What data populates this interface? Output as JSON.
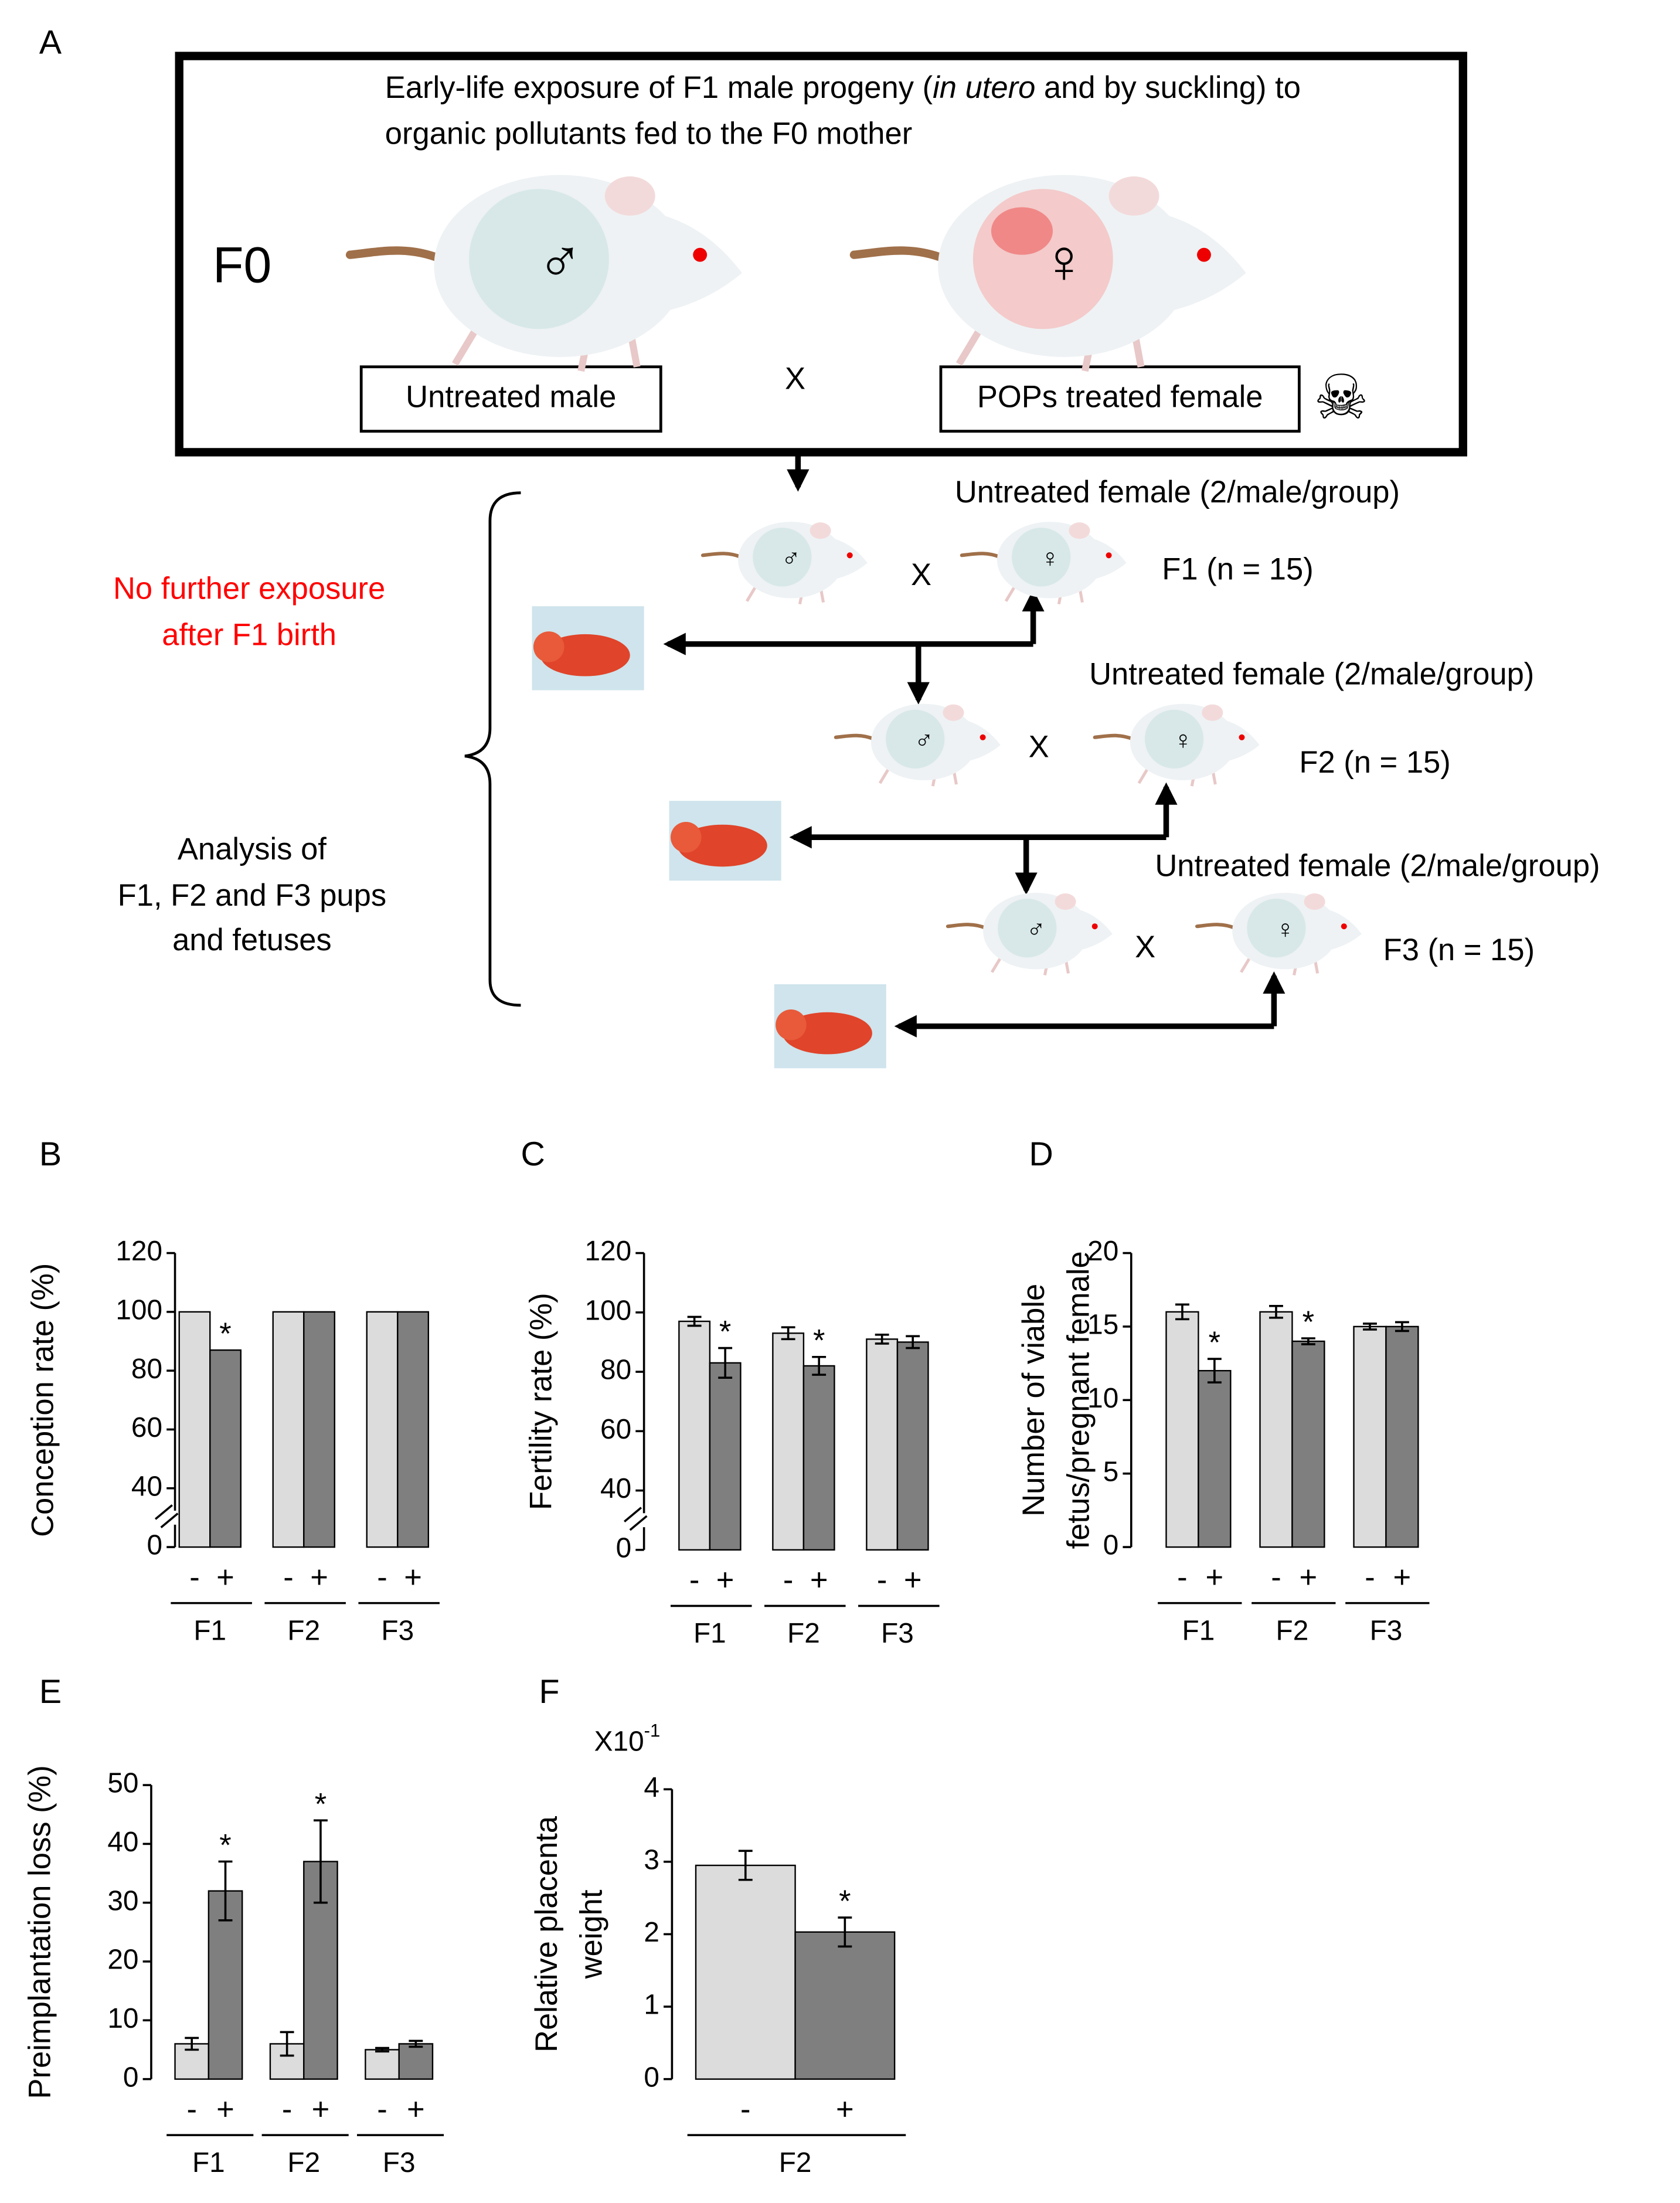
{
  "panel_a": {
    "label": "A",
    "exposure_text": {
      "before": "Early-life exposure of F1 male progeny (",
      "italic": "in utero",
      "after": " and by suckling) to",
      "line2": "organic pollutants fed to the F0 mother"
    },
    "generation": "F0",
    "male_symbol": "♂",
    "female_symbol": "♀",
    "untreated_male": "Untreated male",
    "cross": "X",
    "treated_female": "POPs treated female",
    "toxic_icon": "☠",
    "no_exposure": [
      "No further exposure",
      "after F1 birth"
    ],
    "analysis": [
      "Analysis of",
      "F1, F2 and F3 pups",
      "and fetuses"
    ],
    "crosses": [
      {
        "female": "Untreated female (2/male/group)",
        "generation": "F1 (n = 15)"
      },
      {
        "female": "Untreated female (2/male/group)",
        "generation": "F2 (n = 15)"
      },
      {
        "female": "Untreated female (2/male/group)",
        "generation": "F3 (n = 15)"
      }
    ]
  },
  "chart_data": [
    {
      "panel": "B",
      "type": "bar",
      "ylabel": [
        "Conception rate (%)"
      ],
      "groups": [
        "F1",
        "F2",
        "F3"
      ],
      "series": [
        {
          "name": "-",
          "color": "#dcdcdc",
          "values": [
            100,
            100,
            100
          ]
        },
        {
          "name": "+",
          "color": "#7f7f7f",
          "values": [
            87,
            100,
            100
          ],
          "labels": [
            "*",
            null,
            null
          ]
        }
      ],
      "ylim": [
        0,
        120
      ],
      "yticks": [
        0,
        40,
        60,
        80,
        100,
        120
      ],
      "axis_break": [
        0,
        40
      ]
    },
    {
      "panel": "C",
      "type": "bar",
      "ylabel": [
        "Fertility rate (%)"
      ],
      "groups": [
        "F1",
        "F2",
        "F3"
      ],
      "series": [
        {
          "name": "-",
          "color": "#dcdcdc",
          "values": [
            97,
            93,
            91
          ],
          "errors": [
            1.5,
            2,
            1.5
          ]
        },
        {
          "name": "+",
          "color": "#7f7f7f",
          "values": [
            83,
            82,
            90
          ],
          "errors": [
            5,
            3,
            2
          ],
          "labels": [
            "*",
            "*",
            null
          ]
        }
      ],
      "ylim": [
        0,
        120
      ],
      "yticks": [
        0,
        40,
        60,
        80,
        100,
        120
      ],
      "axis_break": [
        0,
        40
      ]
    },
    {
      "panel": "D",
      "type": "bar",
      "ylabel": [
        "Number of viable",
        "fetus/pregnant female"
      ],
      "groups": [
        "F1",
        "F2",
        "F3"
      ],
      "series": [
        {
          "name": "-",
          "color": "#dcdcdc",
          "values": [
            16,
            16,
            15
          ],
          "errors": [
            0.5,
            0.4,
            0.2
          ]
        },
        {
          "name": "+",
          "color": "#7f7f7f",
          "values": [
            12,
            14,
            15
          ],
          "errors": [
            0.8,
            0.2,
            0.3
          ],
          "labels": [
            "*",
            "*",
            null
          ]
        }
      ],
      "ylim": [
        0,
        20
      ],
      "yticks": [
        0,
        5,
        10,
        15,
        20
      ]
    },
    {
      "panel": "E",
      "type": "bar",
      "ylabel": [
        "Preimplantation loss (%)"
      ],
      "groups": [
        "F1",
        "F2",
        "F3"
      ],
      "series": [
        {
          "name": "-",
          "color": "#dcdcdc",
          "values": [
            6,
            6,
            5
          ],
          "errors": [
            1,
            2,
            0.3
          ]
        },
        {
          "name": "+",
          "color": "#7f7f7f",
          "values": [
            32,
            37,
            6
          ],
          "errors": [
            5,
            7,
            0.5
          ],
          "labels": [
            "*",
            "*",
            null
          ]
        }
      ],
      "ylim": [
        0,
        50
      ],
      "yticks": [
        0,
        10,
        20,
        30,
        40,
        50
      ]
    },
    {
      "panel": "F",
      "type": "bar",
      "ylabel": [
        "Relative placenta",
        "weight"
      ],
      "groups": [
        "F2"
      ],
      "axis_multiplier": {
        "base": "X10",
        "exponent": "-1"
      },
      "series": [
        {
          "name": "-",
          "color": "#dcdcdc",
          "values": [
            2.95
          ],
          "errors": [
            0.2
          ]
        },
        {
          "name": "+",
          "color": "#7f7f7f",
          "values": [
            2.03
          ],
          "errors": [
            0.2
          ],
          "labels": [
            "*"
          ]
        }
      ],
      "ylim": [
        0,
        4
      ],
      "yticks": [
        0,
        1,
        2,
        3,
        4
      ]
    }
  ]
}
